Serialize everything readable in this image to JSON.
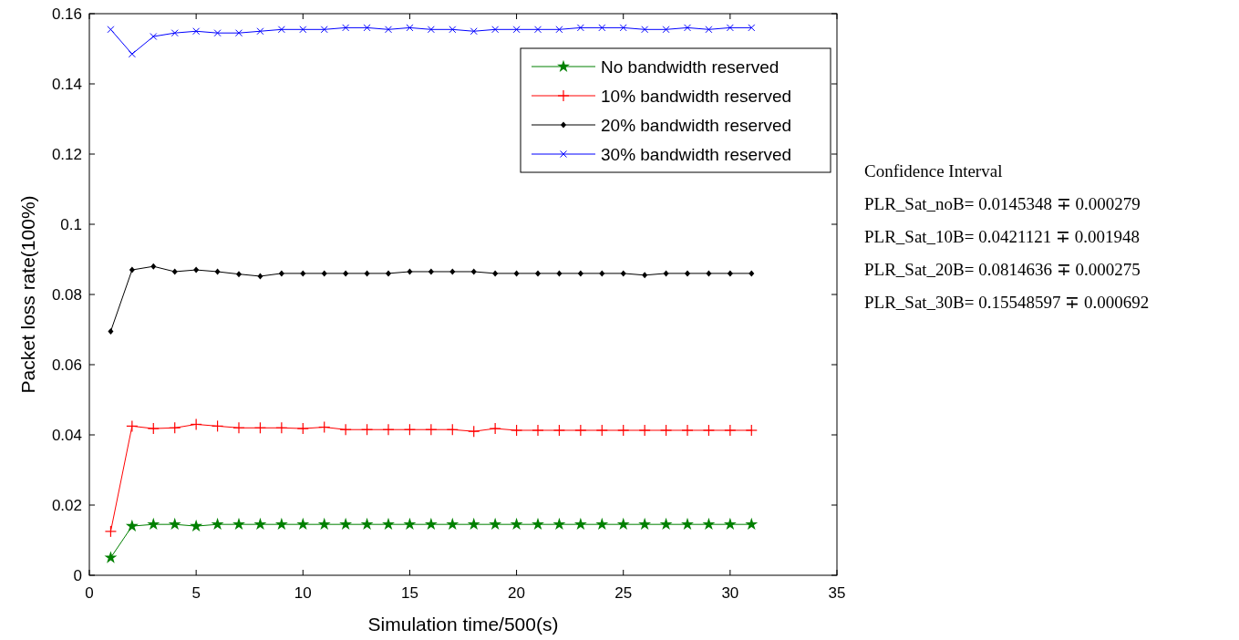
{
  "chart_data": {
    "type": "line",
    "xlabel": "Simulation time/500(s)",
    "ylabel": "Packet loss rate(100%)",
    "x": [
      1,
      2,
      3,
      4,
      5,
      6,
      7,
      8,
      9,
      10,
      11,
      12,
      13,
      14,
      15,
      16,
      17,
      18,
      19,
      20,
      21,
      22,
      23,
      24,
      25,
      26,
      27,
      28,
      29,
      30,
      31
    ],
    "xlim": [
      0,
      35
    ],
    "xticks": [
      0,
      5,
      10,
      15,
      20,
      25,
      30,
      35
    ],
    "ylim": [
      0,
      0.16
    ],
    "yticks": [
      0,
      0.02,
      0.04,
      0.06,
      0.08,
      0.1,
      0.12,
      0.14,
      0.16
    ],
    "legend": "top right",
    "grid": false,
    "series": [
      {
        "name": "No bandwidth reserved",
        "color": "#008000",
        "marker": "star",
        "values": [
          0.005,
          0.014,
          0.0145,
          0.0145,
          0.014,
          0.0145,
          0.0145,
          0.0145,
          0.0145,
          0.0145,
          0.0145,
          0.0145,
          0.0145,
          0.0145,
          0.0145,
          0.0145,
          0.0145,
          0.0145,
          0.0145,
          0.0145,
          0.0145,
          0.0145,
          0.0145,
          0.0145,
          0.0145,
          0.0145,
          0.0145,
          0.0145,
          0.0145,
          0.0145,
          0.0145
        ]
      },
      {
        "name": "10% bandwidth reserved",
        "color": "#ff0000",
        "marker": "cross",
        "values": [
          0.0125,
          0.0425,
          0.0418,
          0.042,
          0.043,
          0.0425,
          0.042,
          0.042,
          0.042,
          0.0418,
          0.0422,
          0.0415,
          0.0415,
          0.0415,
          0.0415,
          0.0415,
          0.0415,
          0.041,
          0.0418,
          0.0413,
          0.0413,
          0.0413,
          0.0413,
          0.0413,
          0.0413,
          0.0413,
          0.0413,
          0.0413,
          0.0413,
          0.0413,
          0.0413
        ]
      },
      {
        "name": "20% bandwidth reserved",
        "color": "#000000",
        "marker": "diamond",
        "values": [
          0.0695,
          0.087,
          0.088,
          0.0865,
          0.087,
          0.0865,
          0.0858,
          0.0852,
          0.086,
          0.086,
          0.086,
          0.086,
          0.086,
          0.086,
          0.0865,
          0.0865,
          0.0865,
          0.0865,
          0.086,
          0.086,
          0.086,
          0.086,
          0.086,
          0.086,
          0.086,
          0.0855,
          0.086,
          0.086,
          0.086,
          0.086,
          0.086
        ]
      },
      {
        "name": "30% bandwidth reserved",
        "color": "#0000ff",
        "marker": "x",
        "values": [
          0.1555,
          0.1485,
          0.1535,
          0.1545,
          0.155,
          0.1545,
          0.1545,
          0.155,
          0.1555,
          0.1555,
          0.1555,
          0.156,
          0.156,
          0.1555,
          0.156,
          0.1555,
          0.1555,
          0.155,
          0.1555,
          0.1555,
          0.1555,
          0.1555,
          0.156,
          0.156,
          0.156,
          0.1555,
          0.1555,
          0.156,
          0.1555,
          0.156,
          0.156
        ]
      }
    ],
    "annotations": [
      "Confidence Interval",
      "PLR_Sat_noB= 0.0145348  ∓  0.000279",
      "PLR_Sat_10B= 0.0421121  ∓  0.001948",
      "PLR_Sat_20B= 0.0814636  ∓  0.000275",
      "PLR_Sat_30B= 0.15548597  ∓  0.000692"
    ]
  }
}
